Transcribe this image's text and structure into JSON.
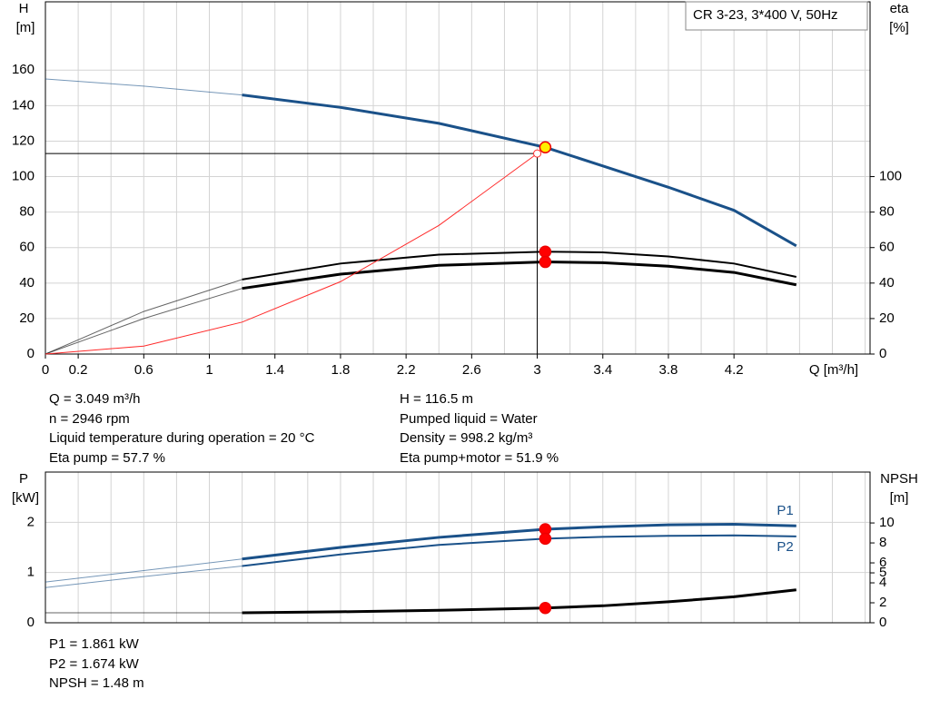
{
  "chart_data": [
    {
      "type": "line",
      "product": "CR 3-23, 3*400 V, 50Hz",
      "ylabel": "H",
      "yunit": "[m]",
      "y2label": "eta",
      "y2unit": "[%]",
      "xlabel": "Q [m³/h]",
      "xlim": [
        0,
        5.03
      ],
      "ylim": [
        0,
        198.5
      ],
      "y2lim": [
        0,
        198.5
      ],
      "xticks": [
        0,
        0.2,
        0.6,
        1.0,
        1.4,
        1.8,
        2.2,
        2.6,
        3.0,
        3.4,
        3.8,
        4.2
      ],
      "xgrid": [
        0.2,
        0.4,
        0.6,
        0.8,
        1.0,
        1.2,
        1.4,
        1.6,
        1.8,
        2.0,
        2.2,
        2.4,
        2.6,
        2.8,
        3.0,
        3.2,
        3.4,
        3.6,
        3.8,
        4.0,
        4.2,
        4.4,
        4.6,
        4.8,
        5.0
      ],
      "yticks": [
        0,
        20,
        40,
        60,
        80,
        100,
        120,
        140,
        160
      ],
      "y2ticks": [
        0,
        20,
        40,
        60,
        80,
        100
      ],
      "grid": true,
      "operating_range": [
        1.2,
        4.58
      ],
      "marker_x": 3.049,
      "series": [
        {
          "color": "#1a5189",
          "marker_color": "#ffee00",
          "x": [
            0,
            0.6,
            1.2,
            1.8,
            2.4,
            3.049,
            3.4,
            3.8,
            4.2,
            4.58
          ],
          "values": [
            155,
            151,
            146,
            139,
            130,
            116.5,
            106,
            94,
            81,
            61
          ]
        },
        {
          "color": "#000000",
          "marker_color": "#ff0000",
          "axis": "y2",
          "x": [
            0,
            0.6,
            1.2,
            1.8,
            2.4,
            3.049,
            3.4,
            3.8,
            4.2,
            4.58
          ],
          "values": [
            0,
            24,
            42,
            51,
            56,
            57.7,
            57.3,
            55,
            51,
            43.5
          ]
        },
        {
          "color": "#000000",
          "marker_color": "#ff0000",
          "axis": "y2",
          "x": [
            0,
            0.6,
            1.2,
            1.8,
            2.4,
            3.049,
            3.4,
            3.8,
            4.2,
            4.58
          ],
          "values": [
            0,
            20,
            37,
            45,
            50,
            51.9,
            51.5,
            49.5,
            46,
            39
          ]
        },
        {
          "color": "#ff2a2a",
          "thin": true,
          "x": [
            0,
            0.6,
            1.2,
            1.8,
            2.4,
            3.0
          ],
          "values": [
            0,
            4.5,
            18,
            40.8,
            72.5,
            113
          ]
        }
      ]
    },
    {
      "type": "line",
      "ylabel": "P",
      "yunit": "[kW]",
      "y2label": "NPSH",
      "y2unit": "[m]",
      "xlim": [
        0,
        5.03
      ],
      "ylim": [
        0,
        3
      ],
      "y2lim": [
        0,
        15.1
      ],
      "xgrid": [
        0.2,
        0.4,
        0.6,
        0.8,
        1.0,
        1.2,
        1.4,
        1.6,
        1.8,
        2.0,
        2.2,
        2.4,
        2.6,
        2.8,
        3.0,
        3.2,
        3.4,
        3.6,
        3.8,
        4.0,
        4.2,
        4.4,
        4.6,
        4.8,
        5.0
      ],
      "yticks": [
        0,
        1,
        2
      ],
      "y2ticks": [
        0,
        2,
        4,
        5,
        6,
        8,
        10
      ],
      "grid": true,
      "operating_range": [
        1.2,
        4.58
      ],
      "marker_x": 3.049,
      "series": [
        {
          "name": "P1",
          "color": "#1a5189",
          "marker_color": "#ff0000",
          "x": [
            0,
            0.6,
            1.2,
            1.8,
            2.4,
            3.049,
            3.4,
            3.8,
            4.2,
            4.58
          ],
          "values": [
            0.81,
            1.04,
            1.27,
            1.5,
            1.7,
            1.861,
            1.91,
            1.95,
            1.96,
            1.93
          ]
        },
        {
          "name": "P2",
          "color": "#1a5189",
          "marker_color": "#ff0000",
          "x": [
            0,
            0.6,
            1.2,
            1.8,
            2.4,
            3.049,
            3.4,
            3.8,
            4.2,
            4.58
          ],
          "values": [
            0.7,
            0.92,
            1.13,
            1.36,
            1.55,
            1.674,
            1.71,
            1.73,
            1.74,
            1.72
          ]
        },
        {
          "color": "#000000",
          "marker_color": "#ff0000",
          "axis": "y2",
          "x": [
            0,
            0.6,
            1.2,
            1.8,
            2.4,
            3.049,
            3.4,
            3.8,
            4.2,
            4.58
          ],
          "values": [
            1.0,
            1.0,
            1.0,
            1.1,
            1.25,
            1.48,
            1.7,
            2.1,
            2.6,
            3.3
          ]
        }
      ]
    }
  ],
  "info": {
    "left": [
      "Q = 3.049 m³/h",
      "n = 2946 rpm",
      "Liquid temperature during operation = 20 °C",
      "Eta pump = 57.7 %"
    ],
    "right": [
      "H = 116.5 m",
      "Pumped liquid = Water",
      "Density = 998.2 kg/m³",
      "Eta pump+motor = 51.9 %"
    ],
    "bottom": [
      "P1 = 1.861 kW",
      "P2 = 1.674 kW",
      "NPSH = 1.48 m"
    ]
  }
}
